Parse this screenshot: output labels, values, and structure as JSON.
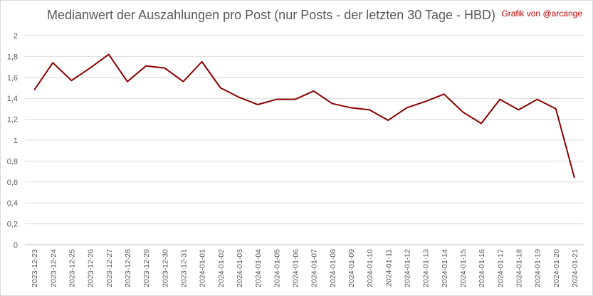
{
  "chart_data": {
    "type": "line",
    "title": "Medianwert der Auszahlungen pro Post (nur Posts - der letzten 30 Tage - HBD)",
    "credit": "Grafik von @arcange",
    "xlabel": "",
    "ylabel": "",
    "ylim": [
      0,
      2
    ],
    "y_ticks": [
      0,
      0.2,
      0.4,
      0.6,
      0.8,
      1,
      1.2,
      1.4,
      1.6,
      1.8,
      2
    ],
    "y_tick_labels": [
      "0",
      "0,2",
      "0,4",
      "0,6",
      "0,8",
      "1",
      "1,2",
      "1,4",
      "1,6",
      "1,8",
      "2"
    ],
    "grid": true,
    "legend": "none",
    "line_color": "#8b0000",
    "x": [
      "2023-12-23",
      "2023-12-24",
      "2023-12-25",
      "2023-12-26",
      "2023-12-27",
      "2023-12-28",
      "2023-12-29",
      "2023-12-30",
      "2023-12-31",
      "2024-01-01",
      "2024-01-02",
      "2024-01-03",
      "2024-01-04",
      "2024-01-05",
      "2024-01-06",
      "2024-01-07",
      "2024-01-08",
      "2024-01-09",
      "2024-01-10",
      "2024-01-11",
      "2024-01-12",
      "2024-01-13",
      "2024-01-14",
      "2024-01-15",
      "2024-01-16",
      "2024-01-17",
      "2024-01-18",
      "2024-01-19",
      "2024-01-20",
      "2024-01-21"
    ],
    "series": [
      {
        "values": [
          1.48,
          1.74,
          1.57,
          1.69,
          1.82,
          1.56,
          1.71,
          1.69,
          1.56,
          1.75,
          1.5,
          1.41,
          1.34,
          1.39,
          1.39,
          1.47,
          1.35,
          1.31,
          1.29,
          1.19,
          1.31,
          1.37,
          1.44,
          1.27,
          1.16,
          1.39,
          1.29,
          1.39,
          1.3,
          0.64
        ]
      }
    ]
  }
}
